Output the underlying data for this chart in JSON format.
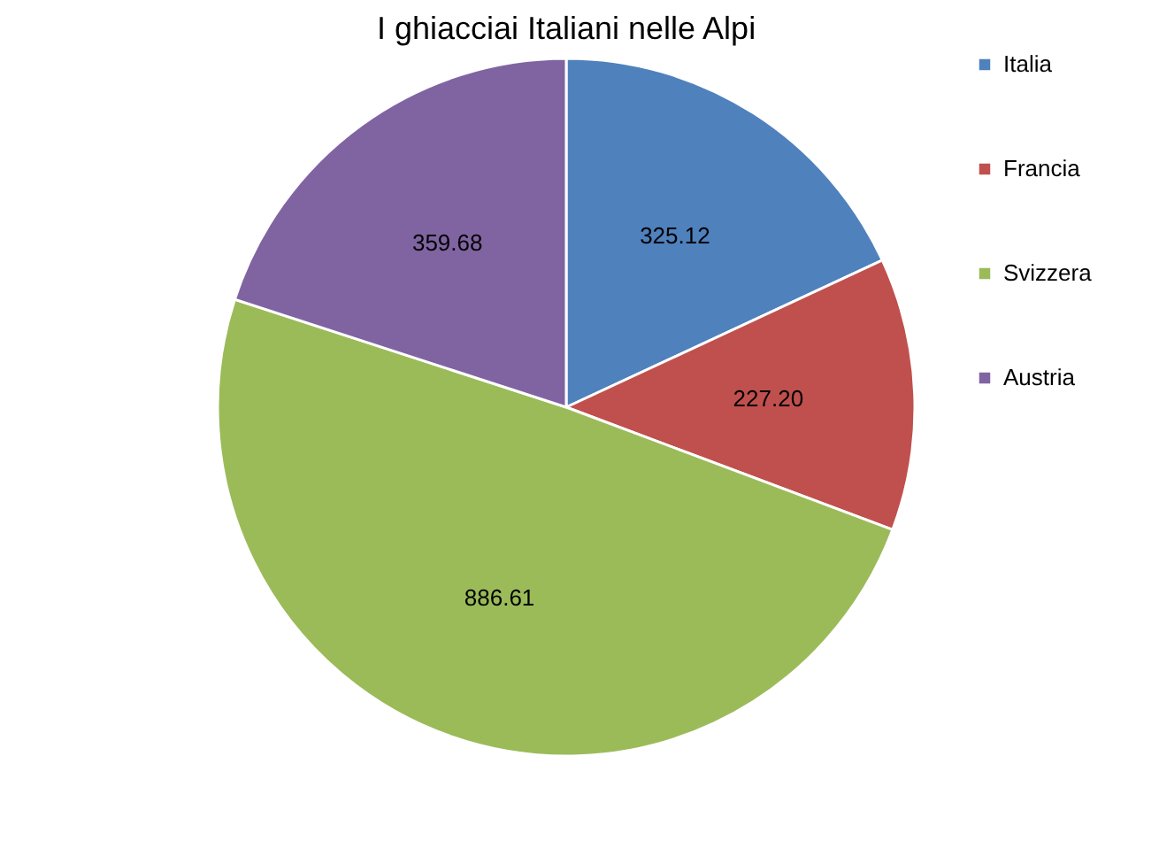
{
  "chart_data": {
    "type": "pie",
    "title": "I ghiacciai Italiani nelle Alpi",
    "categories": [
      "Italia",
      "Francia",
      "Svizzera",
      "Austria"
    ],
    "values": [
      325.12,
      227.2,
      886.61,
      359.68
    ],
    "value_labels": [
      "325.12",
      "227.20",
      "886.61",
      "359.68"
    ],
    "colors": [
      "#4f81bd",
      "#c0504d",
      "#9bbb59",
      "#8064a2"
    ],
    "legend": "right"
  }
}
